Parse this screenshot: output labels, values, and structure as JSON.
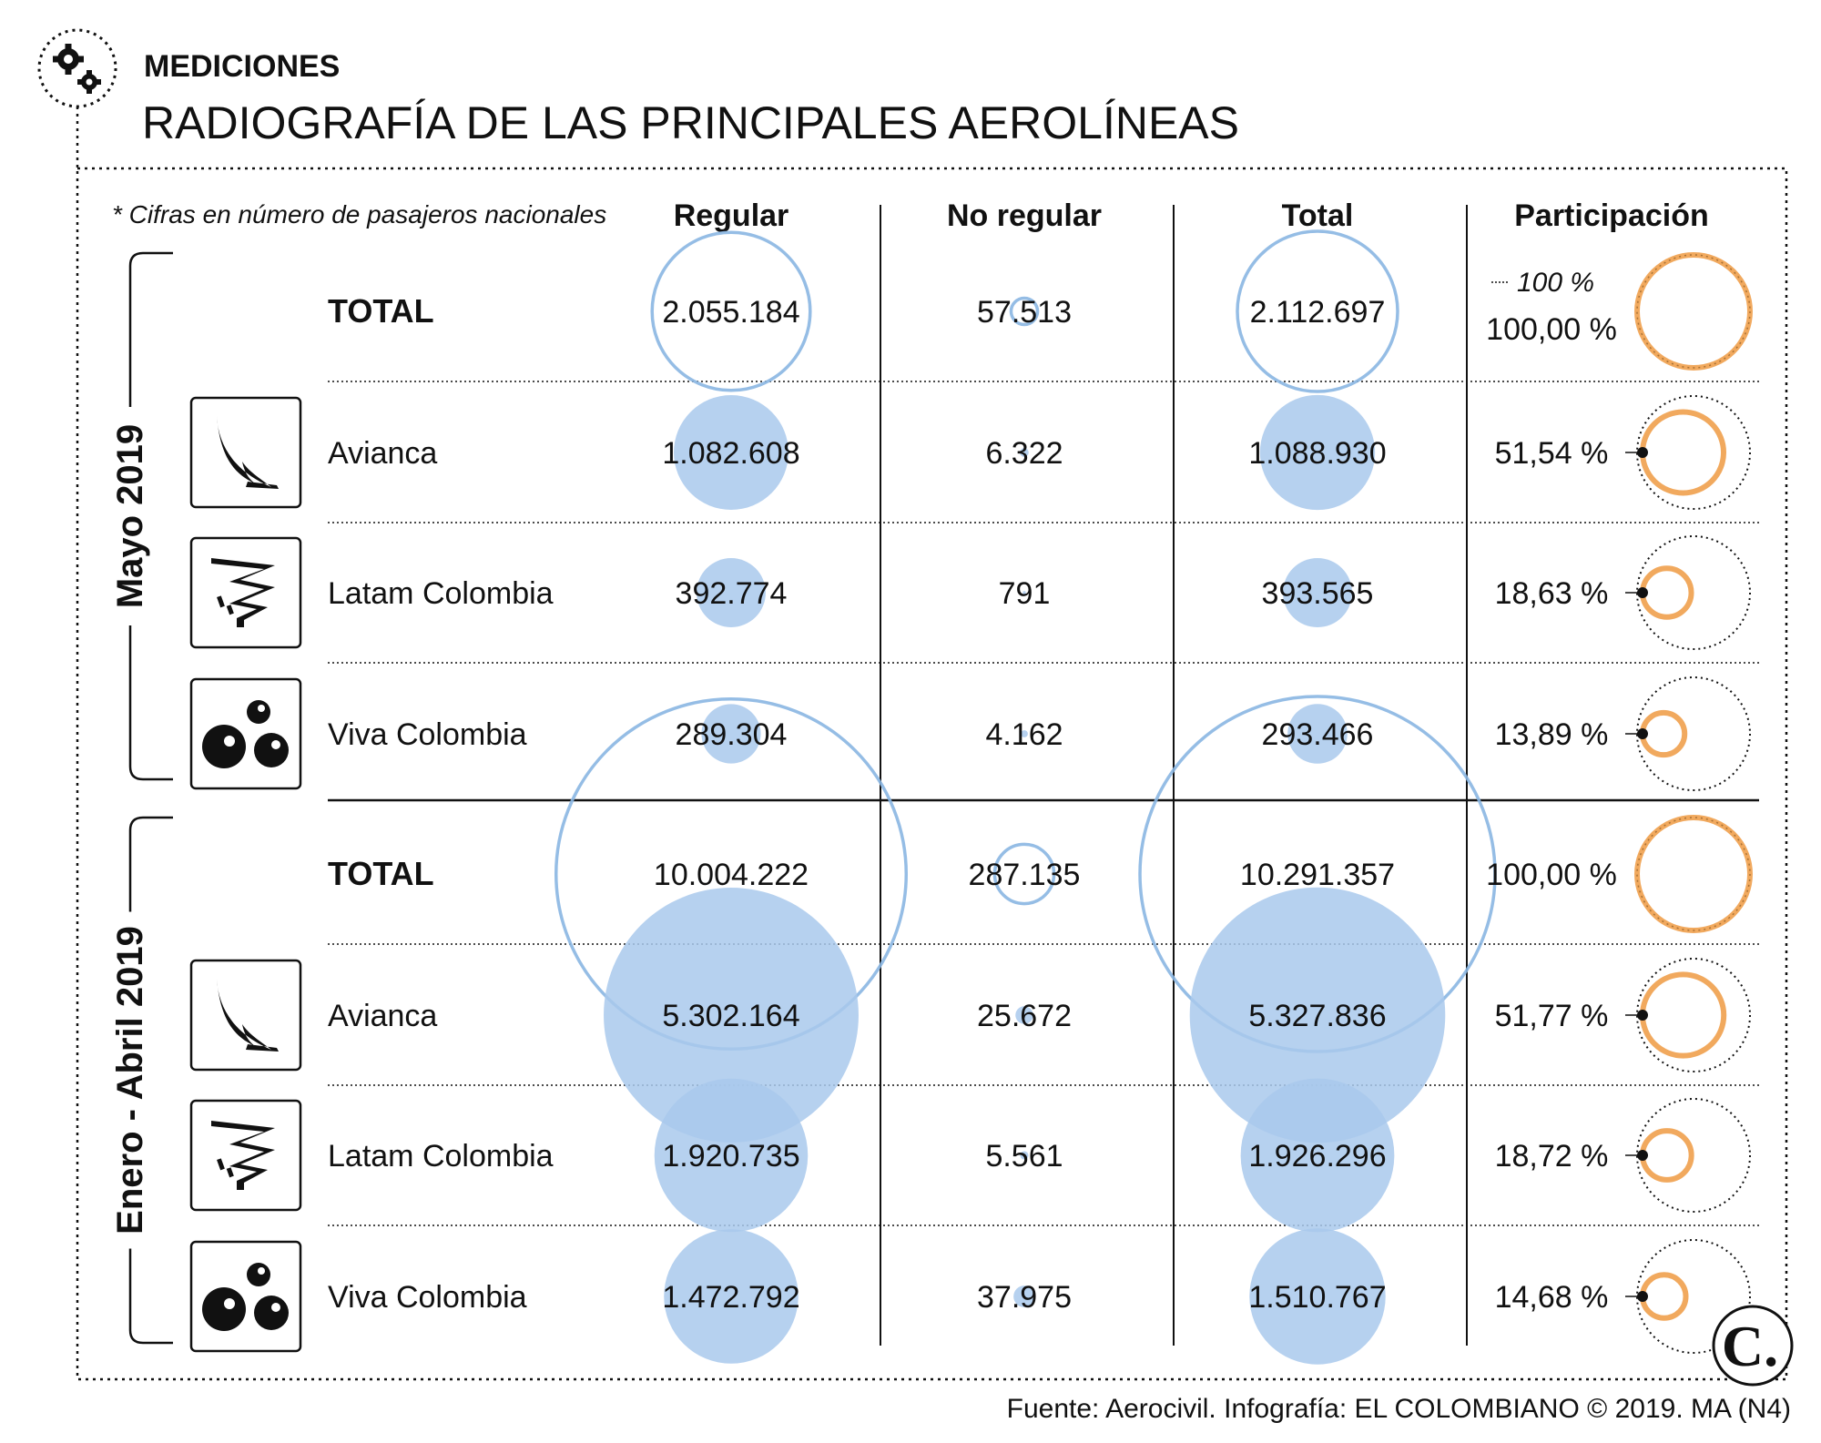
{
  "header": {
    "kicker": "MEDICIONES",
    "title": "RADIOGRAFÍA DE LAS PRINCIPALES AEROLÍNEAS",
    "icon": "gears-icon"
  },
  "note": "* Cifras en número de pasajeros nacionales",
  "source": "Fuente: Aerocivil. Infografía: EL COLOMBIANO © 2019. MA (N4)",
  "brand_mark": "C.",
  "colors": {
    "bubble_fill": "#a9c9ec",
    "bubble_stroke": "#8ab6e2",
    "ring": "#f1a95e",
    "ink": "#111111"
  },
  "chart_data": {
    "type": "table",
    "columns": [
      "Regular",
      "No regular",
      "Total",
      "Participación"
    ],
    "reference_label": "100 %",
    "periods": [
      {
        "label": "Mayo 2019",
        "rows": [
          {
            "name": "TOTAL",
            "is_total": true,
            "icon": "",
            "regular": 2055184,
            "no_regular": 57513,
            "total": 2112697,
            "share": 100.0,
            "regular_label": "2.055.184",
            "no_regular_label": "57.513",
            "total_label": "2.112.697",
            "share_label": "100,00 %"
          },
          {
            "name": "Avianca",
            "is_total": false,
            "icon": "avianca-logo-icon",
            "regular": 1082608,
            "no_regular": 6322,
            "total": 1088930,
            "share": 51.54,
            "regular_label": "1.082.608",
            "no_regular_label": "6.322",
            "total_label": "1.088.930",
            "share_label": "51,54 %"
          },
          {
            "name": "Latam Colombia",
            "is_total": false,
            "icon": "latam-logo-icon",
            "regular": 392774,
            "no_regular": 791,
            "total": 393565,
            "share": 18.63,
            "regular_label": "392.774",
            "no_regular_label": "791",
            "total_label": "393.565",
            "share_label": "18,63 %"
          },
          {
            "name": "Viva Colombia",
            "is_total": false,
            "icon": "viva-logo-icon",
            "regular": 289304,
            "no_regular": 4162,
            "total": 293466,
            "share": 13.89,
            "regular_label": "289.304",
            "no_regular_label": "4.162",
            "total_label": "293.466",
            "share_label": "13,89 %"
          }
        ]
      },
      {
        "label": "Enero - Abril 2019",
        "rows": [
          {
            "name": "TOTAL",
            "is_total": true,
            "icon": "",
            "regular": 10004222,
            "no_regular": 287135,
            "total": 10291357,
            "share": 100.0,
            "regular_label": "10.004.222",
            "no_regular_label": "287.135",
            "total_label": "10.291.357",
            "share_label": "100,00 %"
          },
          {
            "name": "Avianca",
            "is_total": false,
            "icon": "avianca-logo-icon",
            "regular": 5302164,
            "no_regular": 25672,
            "total": 5327836,
            "share": 51.77,
            "regular_label": "5.302.164",
            "no_regular_label": "25.672",
            "total_label": "5.327.836",
            "share_label": "51,77 %"
          },
          {
            "name": "Latam Colombia",
            "is_total": false,
            "icon": "latam-logo-icon",
            "regular": 1920735,
            "no_regular": 5561,
            "total": 1926296,
            "share": 18.72,
            "regular_label": "1.920.735",
            "no_regular_label": "5.561",
            "total_label": "1.926.296",
            "share_label": "18,72 %"
          },
          {
            "name": "Viva Colombia",
            "is_total": false,
            "icon": "viva-logo-icon",
            "regular": 1472792,
            "no_regular": 37975,
            "total": 1510767,
            "share": 14.68,
            "regular_label": "1.472.792",
            "no_regular_label": "37.975",
            "total_label": "1.510.767",
            "share_label": "14,68 %"
          }
        ]
      }
    ]
  }
}
